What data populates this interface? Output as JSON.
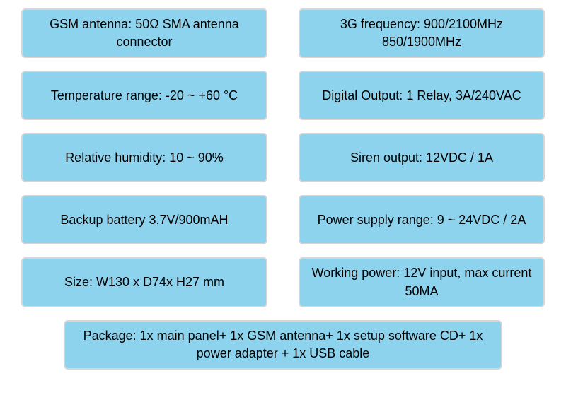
{
  "styling": {
    "cell_bg": "#8dd3ed",
    "cell_border": "#d6d6d6",
    "cell_radius": 6,
    "text_color": "#000000",
    "text_fontsize": 18,
    "page_bg": "#ffffff"
  },
  "specs": {
    "rows": [
      {
        "left": "GSM antenna: 50Ω SMA antenna connector",
        "right": "3G frequency: 900/2100MHz 850/1900MHz"
      },
      {
        "left": "Temperature range: -20 ~ +60 °C",
        "right": "Digital Output: 1 Relay, 3A/240VAC"
      },
      {
        "left": "Relative humidity: 10 ~ 90%",
        "right": "Siren output: 12VDC / 1A"
      },
      {
        "left": "Backup battery 3.7V/900mAH",
        "right": "Power supply range: 9 ~ 24VDC / 2A"
      },
      {
        "left": "Size: W130 x D74x H27 mm",
        "right": "Working power:  12V input, max current 50MA"
      }
    ],
    "footer": "Package: 1x main panel+ 1x GSM antenna+ 1x setup software CD+ 1x power adapter + 1x USB cable"
  }
}
